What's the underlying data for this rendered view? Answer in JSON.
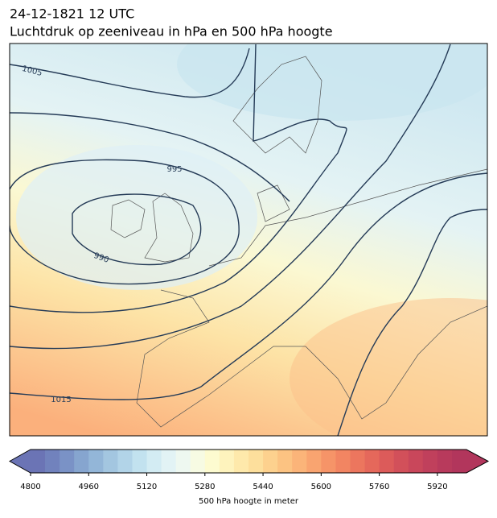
{
  "date": "24-12-1821 12 UTC",
  "title": "Luchtdruk op zeeniveau in hPa en 500 hPa hoogte",
  "isobar_labels": [
    1005,
    995,
    990,
    1015
  ],
  "colorbar": {
    "label": "500 hPa hoogte in meter",
    "vlim": [
      4800,
      6000
    ],
    "ticks": [
      4800,
      4960,
      5120,
      5280,
      5440,
      5600,
      5760,
      5920
    ],
    "colors": [
      "#6b74b5",
      "#7182bd",
      "#7a92c6",
      "#86a5cf",
      "#93b6d8",
      "#a3c6e0",
      "#b2d4e8",
      "#c2e2ef",
      "#d3ecf3",
      "#e2f3f5",
      "#eef8f0",
      "#f7fbe3",
      "#fdfbd0",
      "#fef3bd",
      "#fee9ab",
      "#fddf9c",
      "#fdd18e",
      "#fcc382",
      "#fbb479",
      "#f9a470",
      "#f69468",
      "#f28562",
      "#ec765e",
      "#e5685b",
      "#dc5b5a",
      "#d2505a",
      "#c9475b",
      "#c0405c",
      "#b83a5c",
      "#b2365c"
    ]
  }
}
